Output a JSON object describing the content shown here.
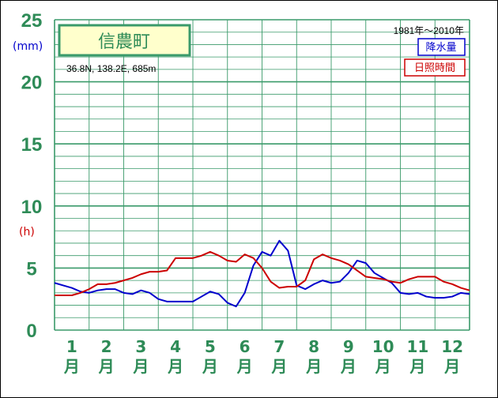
{
  "chart_data": {
    "type": "line",
    "station": "信農町",
    "location": "36.8N,  138.2E,  685m",
    "period": "1981年〜2010年",
    "y_unit_precip": "(mm)",
    "y_unit_sunshine": "(h)",
    "ylim": [
      0,
      25
    ],
    "yticks": [
      "0",
      "5",
      "10",
      "15",
      "20",
      "25"
    ],
    "months": [
      {
        "num": "1",
        "suffix": "月"
      },
      {
        "num": "2",
        "suffix": "月"
      },
      {
        "num": "3",
        "suffix": "月"
      },
      {
        "num": "4",
        "suffix": "月"
      },
      {
        "num": "5",
        "suffix": "月"
      },
      {
        "num": "6",
        "suffix": "月"
      },
      {
        "num": "7",
        "suffix": "月"
      },
      {
        "num": "8",
        "suffix": "月"
      },
      {
        "num": "9",
        "suffix": "月"
      },
      {
        "num": "10",
        "suffix": "月"
      },
      {
        "num": "11",
        "suffix": "月"
      },
      {
        "num": "12",
        "suffix": "月"
      }
    ],
    "x": [
      0.0,
      0.25,
      0.5,
      0.75,
      1.0,
      1.25,
      1.5,
      1.75,
      2.0,
      2.25,
      2.5,
      2.75,
      3.0,
      3.25,
      3.5,
      3.75,
      4.0,
      4.25,
      4.5,
      4.75,
      5.0,
      5.25,
      5.5,
      5.75,
      6.0,
      6.25,
      6.5,
      6.75,
      7.0,
      7.25,
      7.5,
      7.75,
      8.0,
      8.25,
      8.5,
      8.75,
      9.0,
      9.25,
      9.5,
      9.75,
      10.0,
      10.25,
      10.5,
      10.75,
      11.0,
      11.25,
      11.5,
      11.75,
      12.0
    ],
    "series": [
      {
        "name": "降水量",
        "color": "#0000cc",
        "values": [
          3.8,
          3.6,
          3.4,
          3.1,
          3.0,
          3.2,
          3.3,
          3.3,
          3.0,
          2.9,
          3.2,
          3.0,
          2.5,
          2.3,
          2.3,
          2.3,
          2.3,
          2.7,
          3.1,
          2.9,
          2.2,
          1.9,
          3.0,
          5.2,
          6.3,
          6.0,
          7.2,
          6.4,
          3.6,
          3.3,
          3.7,
          4.0,
          3.8,
          3.9,
          4.6,
          5.6,
          5.4,
          4.6,
          4.2,
          3.8,
          3.0,
          2.9,
          3.0,
          2.7,
          2.6,
          2.6,
          2.7,
          3.0,
          2.9
        ]
      },
      {
        "name": "日照時間",
        "color": "#cc0000",
        "values": [
          2.8,
          2.8,
          2.8,
          3.0,
          3.3,
          3.7,
          3.7,
          3.8,
          4.0,
          4.2,
          4.5,
          4.7,
          4.7,
          4.8,
          5.8,
          5.8,
          5.8,
          6.0,
          6.3,
          6.0,
          5.6,
          5.5,
          6.1,
          5.8,
          5.0,
          3.9,
          3.4,
          3.5,
          3.5,
          4.0,
          5.7,
          6.1,
          5.8,
          5.6,
          5.3,
          4.8,
          4.3,
          4.2,
          4.1,
          3.9,
          3.8,
          4.1,
          4.3,
          4.3,
          4.3,
          3.9,
          3.7,
          3.4,
          3.2
        ]
      }
    ],
    "legend_position": "top-right"
  }
}
